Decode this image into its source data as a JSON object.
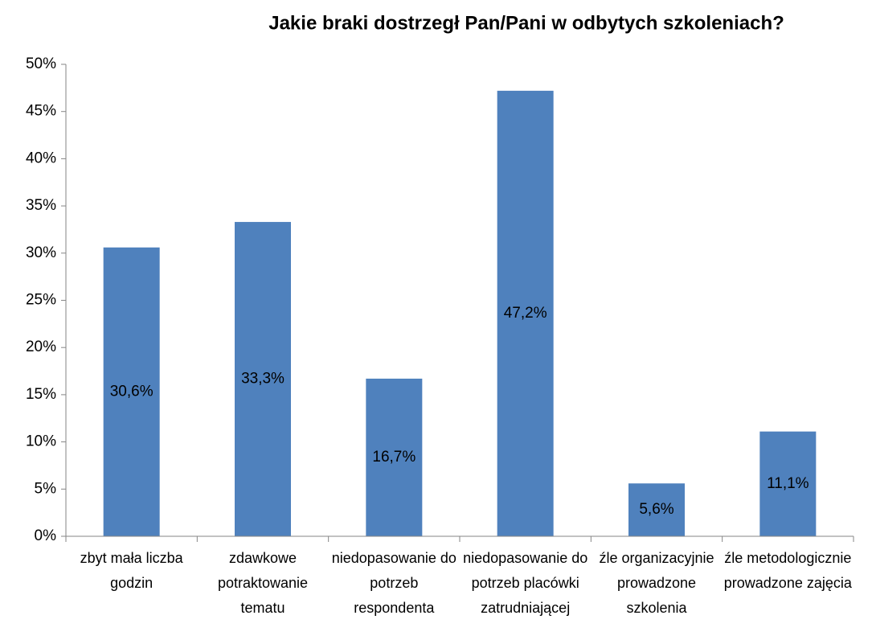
{
  "chart_data": {
    "type": "bar",
    "title": "Jakie braki dostrzegł Pan/Pani w odbytych szkoleniach?",
    "categories": [
      "zbyt mała liczba godzin",
      "zdawkowe potraktowanie tematu",
      "niedopasowanie do potrzeb respondenta",
      "niedopasowanie do potrzeb placówki zatrudniającej",
      "źle organizacyjnie prowadzone szkolenia",
      "źle metodologicznie prowadzone zajęcia"
    ],
    "values": [
      30.6,
      33.3,
      16.7,
      47.2,
      5.6,
      11.1
    ],
    "value_labels": [
      "30,6%",
      "33,3%",
      "16,7%",
      "47,2%",
      "5,6%",
      "11,1%"
    ],
    "color": "#4f81bd",
    "ylim": [
      0,
      50
    ],
    "yticks": [
      {
        "value": 0,
        "label": "0%"
      },
      {
        "value": 5,
        "label": "5%"
      },
      {
        "value": 10,
        "label": "10%"
      },
      {
        "value": 15,
        "label": "15%"
      },
      {
        "value": 20,
        "label": "20%"
      },
      {
        "value": 25,
        "label": "25%"
      },
      {
        "value": 30,
        "label": "30%"
      },
      {
        "value": 35,
        "label": "35%"
      },
      {
        "value": 40,
        "label": "40%"
      },
      {
        "value": 45,
        "label": "45%"
      },
      {
        "value": 50,
        "label": "50%"
      }
    ],
    "grid": false
  }
}
